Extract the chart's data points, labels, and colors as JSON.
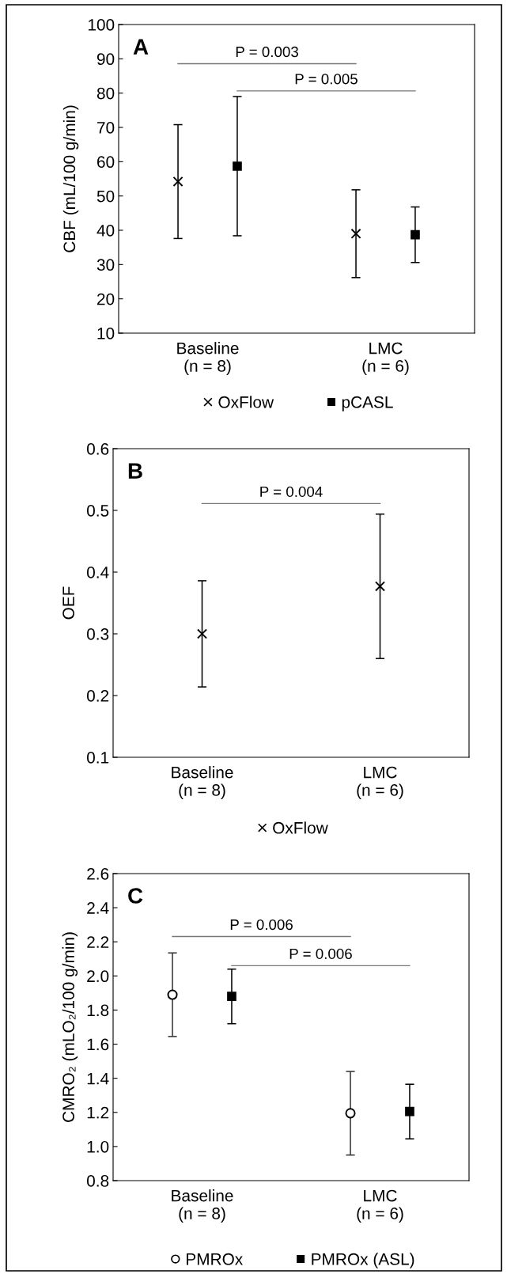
{
  "chart_data": [
    {
      "type": "scatter",
      "title": "A",
      "ylabel": "CBF (mL/100 g/min)",
      "categories": [
        "Baseline\n(n = 8)",
        "LMC\n(n = 6)"
      ],
      "ylim": [
        10,
        100
      ],
      "yticks": [
        10,
        20,
        30,
        40,
        50,
        60,
        70,
        80,
        90,
        100
      ],
      "grid": false,
      "legend": "bottom",
      "series": [
        {
          "name": "OxFlow",
          "color": "#000000",
          "marker": "cross",
          "values": [
            54.2,
            39.0
          ],
          "errors": [
            16.6,
            12.8
          ]
        },
        {
          "name": "pCASL",
          "color": "#000000",
          "marker": "square",
          "values": [
            58.7,
            38.7
          ],
          "errors": [
            20.3,
            8.1
          ]
        }
      ],
      "annotations": [
        "P = 0.003",
        "P = 0.005"
      ]
    },
    {
      "type": "scatter",
      "title": "B",
      "ylabel": "OEF",
      "categories": [
        "Baseline\n(n = 8)",
        "LMC\n(n = 6)"
      ],
      "ylim": [
        0.1,
        0.6
      ],
      "yticks": [
        0.1,
        0.2,
        0.3,
        0.4,
        0.5,
        0.6
      ],
      "grid": false,
      "legend": "bottom",
      "series": [
        {
          "name": "OxFlow",
          "color": "#000000",
          "marker": "cross",
          "values": [
            0.3,
            0.377
          ],
          "errors": [
            0.086,
            0.117
          ]
        }
      ],
      "annotations": [
        "P = 0.004"
      ]
    },
    {
      "type": "scatter",
      "title": "C",
      "ylabel": "CMRO₂ (mLO₂/100 g/min)",
      "categories": [
        "Baseline\n(n = 8)",
        "LMC\n(n = 6)"
      ],
      "ylim": [
        0.8,
        2.6
      ],
      "yticks": [
        {
          "value": 0.8,
          "label": "0.8"
        },
        {
          "value": 1.0,
          "label": "1.0"
        },
        {
          "value": 1.2,
          "label": "1.2"
        },
        {
          "value": 1.4,
          "label": "1.4"
        },
        {
          "value": 1.6,
          "label": "1.6"
        },
        {
          "value": 1.8,
          "label": "1.8"
        },
        {
          "value": 2.0,
          "label": "2.0"
        },
        {
          "value": 2.2,
          "label": "2.2"
        },
        {
          "value": 2.4,
          "label": "2.4"
        },
        {
          "value": 2.6,
          "label": "2.6"
        }
      ],
      "grid": false,
      "legend": "bottom",
      "series": [
        {
          "name": "PMROx",
          "color": "#000000",
          "marker": "circle",
          "values": [
            1.89,
            1.195
          ],
          "errors": [
            0.245,
            0.245
          ]
        },
        {
          "name": "PMROx (ASL)",
          "color": "#000000",
          "marker": "square",
          "values": [
            1.88,
            1.205
          ],
          "errors": [
            0.16,
            0.16
          ]
        }
      ],
      "annotations": [
        "P = 0.006",
        "P = 0.006"
      ]
    }
  ]
}
